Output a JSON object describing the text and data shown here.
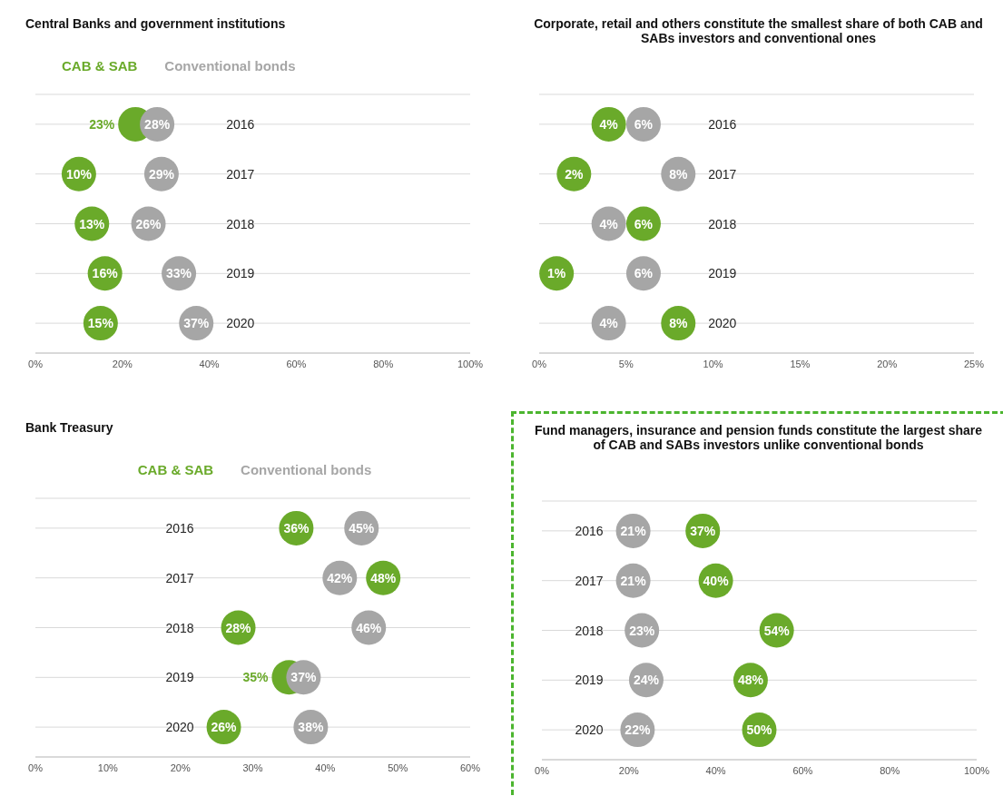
{
  "chart_data": [
    {
      "type": "scatter",
      "orientation": "horizontal",
      "title": "Central Banks and government institutions",
      "categories": [
        "2016",
        "2017",
        "2018",
        "2019",
        "2020"
      ],
      "legend": "top left",
      "grid": "y",
      "marker": "circle",
      "xlim": [
        0,
        100
      ],
      "xticks": [
        {
          "value": 0,
          "label": "0%"
        },
        {
          "value": 20,
          "label": "20%"
        },
        {
          "value": 40,
          "label": "40%"
        },
        {
          "value": 60,
          "label": "60%"
        },
        {
          "value": 80,
          "label": "80%"
        },
        {
          "value": 100,
          "label": "100%"
        }
      ],
      "series": [
        {
          "name": "CAB & SAB",
          "color": "#6aaa2a",
          "values": [
            23,
            10,
            13,
            16,
            15
          ],
          "value_labels": [
            "23%",
            "10%",
            "13%",
            "16%",
            "15%"
          ]
        },
        {
          "name": "Conventional bonds",
          "color": "#a6a6a6",
          "values": [
            28,
            29,
            26,
            33,
            37
          ],
          "value_labels": [
            "28%",
            "29%",
            "26%",
            "33%",
            "37%"
          ]
        }
      ]
    },
    {
      "type": "scatter",
      "orientation": "horizontal",
      "title": "Corporate, retail and others constitute the smallest share of both CAB and SABs investors and conventional ones",
      "categories": [
        "2016",
        "2017",
        "2018",
        "2019",
        "2020"
      ],
      "grid": "y",
      "marker": "circle",
      "xlim": [
        0,
        25
      ],
      "xticks": [
        {
          "value": 0,
          "label": "0%"
        },
        {
          "value": 5,
          "label": "5%"
        },
        {
          "value": 10,
          "label": "10%"
        },
        {
          "value": 15,
          "label": "15%"
        },
        {
          "value": 20,
          "label": "20%"
        },
        {
          "value": 25,
          "label": "25%"
        }
      ],
      "series": [
        {
          "color": "#6aaa2a",
          "values": [
            4,
            2,
            6,
            1,
            8
          ],
          "value_labels": [
            "4%",
            "2%",
            "6%",
            "1%",
            "8%"
          ]
        },
        {
          "color": "#a6a6a6",
          "values": [
            6,
            8,
            4,
            6,
            4
          ],
          "value_labels": [
            "6%",
            "8%",
            "4%",
            "6%",
            "4%"
          ]
        }
      ]
    },
    {
      "type": "scatter",
      "orientation": "horizontal",
      "title": "Bank Treasury",
      "categories": [
        "2016",
        "2017",
        "2018",
        "2019",
        "2020"
      ],
      "legend": "top",
      "grid": "y",
      "marker": "circle",
      "xlim": [
        0,
        60
      ],
      "xticks": [
        {
          "value": 0,
          "label": "0%"
        },
        {
          "value": 10,
          "label": "10%"
        },
        {
          "value": 20,
          "label": "20%"
        },
        {
          "value": 30,
          "label": "30%"
        },
        {
          "value": 40,
          "label": "40%"
        },
        {
          "value": 50,
          "label": "50%"
        },
        {
          "value": 60,
          "label": "60%"
        }
      ],
      "series": [
        {
          "name": "CAB & SAB",
          "color": "#6aaa2a",
          "values": [
            36,
            48,
            28,
            35,
            26
          ],
          "value_labels": [
            "36%",
            "48%",
            "28%",
            "35%",
            "26%"
          ]
        },
        {
          "name": "Conventional bonds",
          "color": "#a6a6a6",
          "values": [
            45,
            42,
            46,
            37,
            38
          ],
          "value_labels": [
            "45%",
            "42%",
            "46%",
            "37%",
            "38%"
          ]
        }
      ]
    },
    {
      "type": "scatter",
      "orientation": "horizontal",
      "title": "Fund managers, insurance and pension funds constitute the largest share of CAB and SABs investors unlike conventional bonds",
      "categories": [
        "2016",
        "2017",
        "2018",
        "2019",
        "2020"
      ],
      "grid": "y",
      "marker": "circle",
      "xlim": [
        0,
        100
      ],
      "xticks": [
        {
          "value": 0,
          "label": "0%"
        },
        {
          "value": 20,
          "label": "20%"
        },
        {
          "value": 40,
          "label": "40%"
        },
        {
          "value": 60,
          "label": "60%"
        },
        {
          "value": 80,
          "label": "80%"
        },
        {
          "value": 100,
          "label": "100%"
        }
      ],
      "series": [
        {
          "color": "#6aaa2a",
          "values": [
            37,
            40,
            54,
            48,
            50
          ],
          "value_labels": [
            "37%",
            "40%",
            "54%",
            "48%",
            "50%"
          ]
        },
        {
          "color": "#a6a6a6",
          "values": [
            21,
            21,
            23,
            24,
            22
          ],
          "value_labels": [
            "21%",
            "21%",
            "23%",
            "24%",
            "22%"
          ]
        }
      ]
    }
  ]
}
